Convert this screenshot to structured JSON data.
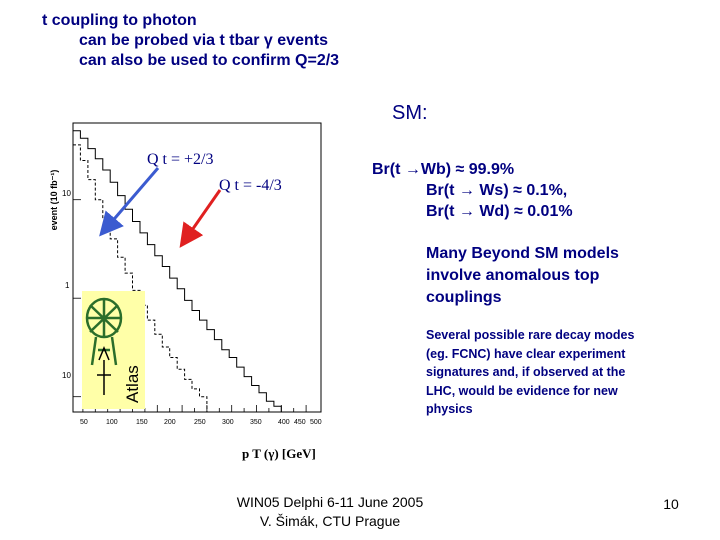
{
  "header": {
    "lines": [
      "t coupling to photon",
      "can be probed via t tbar γ events",
      "can also be used to confirm Q=2/3"
    ]
  },
  "sm": {
    "label": "SM:",
    "br_lines": [
      "Br(t →Wb) ≈ 99.9%",
      "Br(t → Ws) ≈ 0.1%,",
      "Br(t → Wd) ≈ 0.01%"
    ]
  },
  "bsm": {
    "lines": [
      "Many Beyond SM models",
      "involve anomalous top",
      "couplings"
    ]
  },
  "rare": {
    "lines": [
      "Several possible rare decay modes",
      "(eg. FCNC) have clear experiment",
      "signatures and, if observed at the",
      "LHC, would be evidence for new",
      "physics"
    ]
  },
  "plot": {
    "ylabel": "event (10 fb⁻¹)",
    "xlabel": "p T (γ) [GeV]",
    "label_q23": "Q t = +2/3",
    "label_q43": "Q t = -4/3",
    "logo_text": "Atlas",
    "colors": {
      "arrow_blue": "#3b5bd0",
      "arrow_red": "#e02020",
      "logo_bg": "#ffffa8"
    }
  },
  "chart_data": {
    "type": "step",
    "y_scale": "log",
    "xlabel": "pT(γ) [GeV]",
    "ylabel": "event (10 fb⁻¹)",
    "xlim": [
      30,
      530
    ],
    "ylim": [
      0.07,
      60
    ],
    "x_ticks": [
      "50",
      "100",
      "150",
      "200",
      "250",
      "300",
      "350",
      "400",
      "450",
      "500"
    ],
    "y_ticks": [
      "10",
      "1",
      "10"
    ],
    "series": [
      {
        "name": "Q t = +2/3",
        "bins": [
          [
            30,
            45,
            36
          ],
          [
            45,
            60,
            25
          ],
          [
            60,
            75,
            16
          ],
          [
            75,
            90,
            10
          ],
          [
            90,
            105,
            6.5
          ],
          [
            105,
            120,
            4.0
          ],
          [
            120,
            135,
            2.6
          ],
          [
            135,
            150,
            1.8
          ],
          [
            150,
            165,
            1.2
          ],
          [
            165,
            180,
            0.85
          ],
          [
            180,
            195,
            0.6
          ],
          [
            195,
            210,
            0.43
          ],
          [
            210,
            225,
            0.32
          ],
          [
            225,
            240,
            0.25
          ],
          [
            240,
            255,
            0.19
          ],
          [
            255,
            270,
            0.15
          ],
          [
            270,
            285,
            0.12
          ],
          [
            285,
            300,
            0.1
          ]
        ]
      },
      {
        "name": "Q t = -4/3",
        "bins": [
          [
            30,
            45,
            50
          ],
          [
            45,
            60,
            42
          ],
          [
            60,
            75,
            33
          ],
          [
            75,
            90,
            26
          ],
          [
            90,
            105,
            20
          ],
          [
            105,
            120,
            15
          ],
          [
            120,
            135,
            11
          ],
          [
            135,
            150,
            8
          ],
          [
            150,
            165,
            6
          ],
          [
            165,
            180,
            4.6
          ],
          [
            180,
            195,
            3.5
          ],
          [
            195,
            210,
            2.7
          ],
          [
            210,
            225,
            2.1
          ],
          [
            225,
            240,
            1.6
          ],
          [
            240,
            255,
            1.25
          ],
          [
            255,
            270,
            0.95
          ],
          [
            270,
            285,
            0.75
          ],
          [
            285,
            300,
            0.6
          ],
          [
            300,
            315,
            0.48
          ],
          [
            315,
            330,
            0.38
          ],
          [
            330,
            345,
            0.3
          ],
          [
            345,
            360,
            0.25
          ],
          [
            360,
            375,
            0.2
          ],
          [
            375,
            390,
            0.16
          ],
          [
            390,
            405,
            0.13
          ],
          [
            405,
            420,
            0.11
          ],
          [
            420,
            435,
            0.09
          ],
          [
            435,
            450,
            0.08
          ]
        ]
      }
    ]
  },
  "footer": {
    "line1": "WIN05  Delphi 6-11 June 2005",
    "line2": "V. Šimák, CTU Prague",
    "page": "10"
  }
}
